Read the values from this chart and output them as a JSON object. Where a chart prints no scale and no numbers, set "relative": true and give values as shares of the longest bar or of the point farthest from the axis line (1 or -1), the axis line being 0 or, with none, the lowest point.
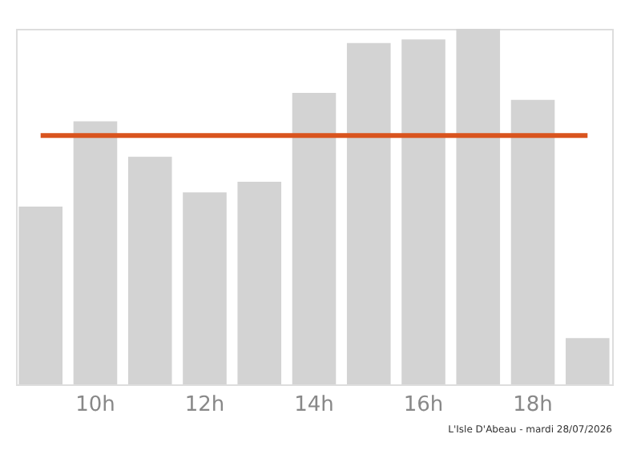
{
  "chart_data": {
    "type": "bar",
    "relative": true,
    "categories": [
      null,
      "10h",
      null,
      "12h",
      null,
      "14h",
      null,
      "16h",
      null,
      "18h",
      null
    ],
    "values": [
      0.5,
      0.74,
      0.64,
      0.54,
      0.57,
      0.82,
      0.96,
      0.97,
      1,
      0.8,
      0.13
    ],
    "color": "#d3d3d3",
    "ref_lines": [
      {
        "axis": "y",
        "value": 0.7,
        "color": "#d9541e"
      }
    ],
    "annotations": [
      "L'Isle D'Abeau - mardi 28/07/2026"
    ],
    "grid": false
  }
}
